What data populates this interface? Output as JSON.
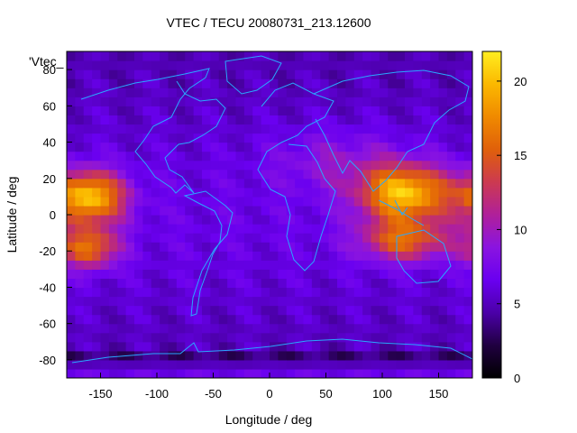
{
  "chart_data": {
    "type": "heatmap",
    "title": "VTEC / TECU 20080731_213.12600",
    "xlabel": "Longitude / deg",
    "ylabel": "Latitude / deg",
    "legend_key": "'Vtec_",
    "xlim": [
      -180,
      180
    ],
    "ylim": [
      -90,
      90
    ],
    "x_ticks": [
      -150,
      -100,
      -50,
      0,
      50,
      100,
      150
    ],
    "y_ticks": [
      -80,
      -60,
      -40,
      -20,
      0,
      20,
      40,
      60,
      80
    ],
    "colorbar": {
      "range": [
        0,
        22
      ],
      "ticks": [
        0,
        5,
        10,
        15,
        20
      ],
      "colormap": [
        "#000000",
        "#200040",
        "#4b00a8",
        "#6a00f0",
        "#8a14e0",
        "#b0209a",
        "#cc3a50",
        "#e0600a",
        "#f08a00",
        "#fbb800",
        "#ffee20"
      ]
    },
    "grid": false,
    "features": [
      {
        "name": "pacific-anomaly",
        "center_lon": -160,
        "center_lat": 5,
        "peak_vtec": 20
      },
      {
        "name": "asia-anomaly",
        "center_lon": 120,
        "center_lat": 5,
        "peak_vtec": 20
      },
      {
        "name": "polar-south-low",
        "center_lat": -85,
        "vtec": 1
      }
    ]
  }
}
